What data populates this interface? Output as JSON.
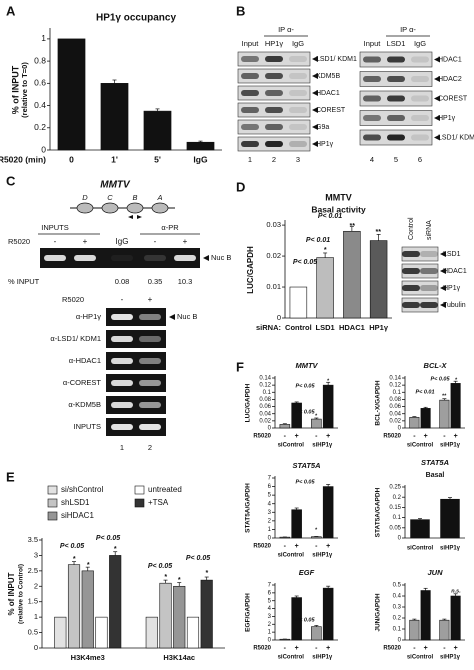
{
  "chart_data": [
    {
      "type": "bar",
      "panel": "A",
      "title": "HP1γ occupancy",
      "ylabel": "% of INPUT",
      "ylabel2": "(relative to T=0)",
      "xlabel": "R5020 (min)",
      "categories": [
        "0",
        "1'",
        "5'",
        "IgG"
      ],
      "series": [
        {
          "color": "#111111",
          "values": [
            1,
            0.6,
            0.35,
            0.07
          ],
          "errors": [
            0,
            0.03,
            0.02,
            0.01
          ]
        }
      ],
      "ylim": [
        0,
        1.08
      ],
      "yticks": [
        0,
        0.2,
        0.4,
        0.6,
        0.8,
        1
      ]
    },
    {
      "type": "bar",
      "panel": "D",
      "title": "MMTV",
      "subtitle": "Basal activity",
      "ylabel": "LUC/GAPDH",
      "xlabel": "siRNA:",
      "categories": [
        "Control",
        "LSD1",
        "HDAC1",
        "HP1γ"
      ],
      "series": [
        {
          "colors": [
            "#ffffff",
            "#bdbdbd",
            "#8a8a8a",
            "#5a5a5a"
          ],
          "values": [
            0.01,
            0.0195,
            0.028,
            0.025
          ],
          "errors": [
            0,
            0.0015,
            0.0015,
            0.002
          ]
        }
      ],
      "ylim": [
        0,
        0.031
      ],
      "yticks": [
        0,
        0.01,
        0.02,
        0.03
      ],
      "annotations": [
        "P< 0.05",
        "P< 0.01",
        "P< 0.01",
        "*",
        "**",
        "**"
      ]
    },
    {
      "type": "bar",
      "panel": "E",
      "ylabel": "% of INPUT",
      "ylabel2": "(relative to Control)",
      "categories": [
        "H3K4me3",
        "H3K14ac"
      ],
      "series": [
        {
          "name": "si/shControl",
          "color": "#e2e2e2",
          "values": [
            1,
            1
          ]
        },
        {
          "name": "shLSD1",
          "color": "#c4c4c4",
          "values": [
            2.7,
            2.1
          ],
          "errors": [
            0.1,
            0.1
          ]
        },
        {
          "name": "siHDAC1",
          "color": "#969696",
          "values": [
            2.5,
            2.0
          ],
          "errors": [
            0.12,
            0.12
          ]
        },
        {
          "name": "untreated",
          "color": "#ffffff",
          "values": [
            1,
            1
          ]
        },
        {
          "name": "+TSA",
          "color": "#333333",
          "values": [
            3.0,
            2.2
          ],
          "errors": [
            0.12,
            0.1
          ]
        }
      ],
      "ylim": [
        0,
        3.5
      ],
      "yticks": [
        0,
        0.5,
        1,
        1.5,
        2,
        2.5,
        3,
        3.5
      ],
      "annotations": [
        "P< 0.05",
        "P< 0.05",
        "P< 0.05",
        "P< 0.05",
        "*",
        "*",
        "*",
        "*",
        "*",
        "*"
      ]
    },
    {
      "type": "bar",
      "panel": "F",
      "title": "MMTV",
      "ylabel": "LUC/GAPDH",
      "xlabel": "R5020",
      "categories": [
        "siControl",
        "siHP1γ"
      ],
      "series": [
        {
          "name": "-",
          "color": "#9e9e9e",
          "values": [
            0.01,
            0.025
          ],
          "errors": [
            0.002,
            0.003
          ]
        },
        {
          "name": "+",
          "color": "#111111",
          "values": [
            0.07,
            0.12
          ],
          "errors": [
            0.003,
            0.008
          ]
        }
      ],
      "ylim": [
        0,
        0.14
      ],
      "yticks": [
        0,
        0.02,
        0.04,
        0.06,
        0.08,
        0.1,
        0.12,
        0.14
      ],
      "annotations": [
        "P< 0.05",
        "P< 0.05",
        "*",
        "*"
      ]
    },
    {
      "type": "bar",
      "title": "BCL-X",
      "ylabel": "BCL-X/GAPDH",
      "xlabel": "R5020",
      "categories": [
        "siControl",
        "siHP1γ"
      ],
      "series": [
        {
          "name": "-",
          "color": "#9e9e9e",
          "values": [
            0.03,
            0.078
          ],
          "errors": [
            0.002,
            0.004
          ]
        },
        {
          "name": "+",
          "color": "#111111",
          "values": [
            0.055,
            0.125
          ],
          "errors": [
            0.003,
            0.006
          ]
        }
      ],
      "ylim": [
        0,
        0.14
      ],
      "yticks": [
        0,
        0.02,
        0.04,
        0.06,
        0.08,
        0.1,
        0.12,
        0.14
      ],
      "annotations": [
        "P< 0.01",
        "P< 0.05",
        "**",
        "*"
      ]
    },
    {
      "type": "bar",
      "title": "STAT5A",
      "ylabel": "STAT5A/GAPDH",
      "xlabel": "R5020",
      "categories": [
        "siControl",
        "siHP1γ"
      ],
      "series": [
        {
          "name": "-",
          "color": "#9e9e9e",
          "values": [
            0.1,
            0.15
          ],
          "errors": [
            0.02,
            0.03
          ]
        },
        {
          "name": "+",
          "color": "#111111",
          "values": [
            3.3,
            6.0
          ],
          "errors": [
            0.2,
            0.25
          ]
        }
      ],
      "ylim": [
        0,
        7
      ],
      "yticks": [
        0,
        1,
        2,
        3,
        4,
        5,
        6,
        7
      ],
      "annotations": [
        "P< 0.05",
        "*"
      ]
    },
    {
      "type": "bar",
      "title": "STAT5A",
      "subtitle": "Basal",
      "ylabel": "STAT5A/GAPDH",
      "categories": [
        "siControl",
        "siHP1γ"
      ],
      "series": [
        {
          "color": "#111111",
          "values": [
            0.09,
            0.19
          ],
          "errors": [
            0.005,
            0.008
          ]
        }
      ],
      "ylim": [
        0,
        0.25
      ],
      "yticks": [
        0,
        0.05,
        0.1,
        0.15,
        0.2,
        0.25
      ]
    },
    {
      "type": "bar",
      "title": "EGF",
      "ylabel": "EGF/GAPDH",
      "xlabel": "R5020",
      "categories": [
        "siControl",
        "siHP1γ"
      ],
      "series": [
        {
          "name": "-",
          "color": "#9e9e9e",
          "values": [
            0.1,
            1.7
          ],
          "errors": [
            0.02,
            0.15
          ]
        },
        {
          "name": "+",
          "color": "#111111",
          "values": [
            5.4,
            6.6
          ],
          "errors": [
            0.2,
            0.25
          ]
        }
      ],
      "ylim": [
        0,
        7
      ],
      "yticks": [
        0,
        1,
        2,
        3,
        4,
        5,
        6,
        7
      ],
      "annotations": [
        "P< 0.05"
      ]
    },
    {
      "type": "bar",
      "title": "JUN",
      "ylabel": "JUN/GAPDH",
      "xlabel": "R5020",
      "categories": [
        "siControl",
        "siHP1γ"
      ],
      "series": [
        {
          "name": "-",
          "color": "#9e9e9e",
          "values": [
            0.18,
            0.18
          ],
          "errors": [
            0.01,
            0.01
          ]
        },
        {
          "name": "+",
          "color": "#111111",
          "values": [
            0.45,
            0.4
          ],
          "errors": [
            0.02,
            0.02
          ]
        }
      ],
      "ylim": [
        0,
        0.5
      ],
      "yticks": [
        0,
        0.1,
        0.2,
        0.3,
        0.4,
        0.5
      ],
      "annotations": [
        "n.s."
      ]
    }
  ],
  "blots": [
    {
      "panel": "B",
      "ip": "IP α-",
      "lanes_header": [
        "Input",
        "HP1γ",
        "IgG"
      ],
      "rows": [
        "LSD1/ KDM1",
        "KDM5B",
        "HDAC1",
        "COREST",
        "G9a",
        "HP1γ"
      ],
      "lanes": [
        "1",
        "2",
        "3"
      ]
    },
    {
      "ip": "IP α-",
      "lanes_header": [
        "Input",
        "LSD1",
        "IgG"
      ],
      "rows": [
        "HDAC1",
        "HDAC2",
        "COREST",
        "HP1γ",
        "LSD1/ KDM1"
      ],
      "lanes": [
        "4",
        "5",
        "6"
      ]
    },
    {
      "lanes_header": [
        "Control",
        "siRNA"
      ],
      "rows": [
        "LSD1",
        "HDAC1",
        "HP1γ",
        "Tubulin"
      ]
    }
  ],
  "chip": {
    "panel": "C",
    "title": "MMTV",
    "regions": [
      "D",
      "C",
      "B",
      "A"
    ],
    "top": {
      "groups": [
        "INPUTS",
        "α-PR"
      ],
      "treatment": "R5020",
      "lanes_header": [
        "-",
        "+",
        "IgG",
        "-",
        "+"
      ],
      "band": "Nuc B",
      "percent_label": "% INPUT",
      "percent_values": [
        0.08,
        0.35,
        10.3
      ]
    },
    "bottom": {
      "treatment": "R5020",
      "lanes_header": [
        "-",
        "+"
      ],
      "rows": [
        "α-HP1γ",
        "α-LSD1/ KDM1",
        "α-HDAC1",
        "α-COREST",
        "α-KDM5B",
        "INPUTS"
      ],
      "band": "Nuc B",
      "lanes": [
        "1",
        "2"
      ]
    }
  }
}
